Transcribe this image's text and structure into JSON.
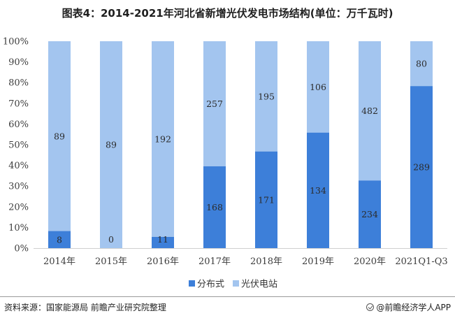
{
  "title": "图表4：2014-2021年河北省新增光伏发电市场结构(单位：万千瓦时)",
  "source": "资料来源：国家能源局 前瞻产业研究院整理",
  "brand": "@前瞻经济学人APP",
  "colors": {
    "distributed": "#3d7fd9",
    "pv": "#a3c5ef"
  },
  "chart_data": {
    "type": "bar",
    "stacked": "percent",
    "categories": [
      "2014年",
      "2015年",
      "2016年",
      "2017年",
      "2018年",
      "2019年",
      "2020年",
      "2021Q1-Q3"
    ],
    "series": [
      {
        "name": "分布式",
        "values": [
          8,
          0,
          11,
          168,
          171,
          134,
          234,
          289
        ]
      },
      {
        "name": "光伏电站",
        "values": [
          89,
          89,
          192,
          257,
          195,
          106,
          482,
          80
        ]
      }
    ],
    "yticks": [
      "0%",
      "10%",
      "20%",
      "30%",
      "40%",
      "50%",
      "60%",
      "70%",
      "80%",
      "90%",
      "100%"
    ],
    "ylim": [
      0,
      100
    ],
    "legend": "bottom",
    "grid": false
  }
}
